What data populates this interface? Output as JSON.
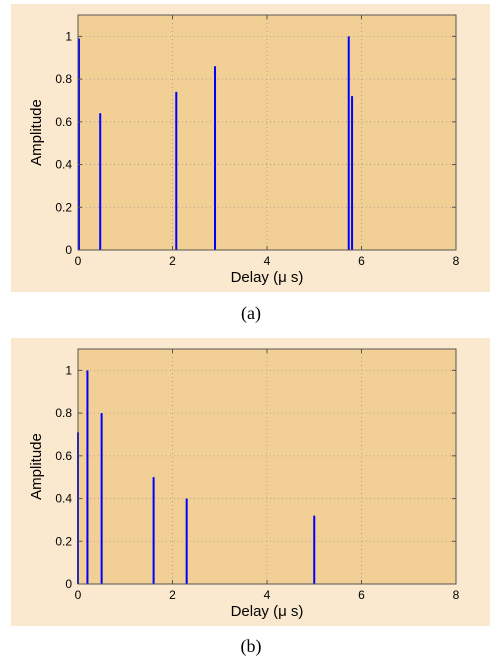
{
  "chart_data": [
    {
      "type": "stem",
      "caption": "(a)",
      "xlabel": "Delay (μ s)",
      "ylabel": "Amplitude",
      "xlim": [
        0,
        8
      ],
      "ylim": [
        0,
        1.1
      ],
      "xticks": [
        0,
        2,
        4,
        6,
        8
      ],
      "yticks": [
        0,
        0.2,
        0.4,
        0.6,
        0.8,
        1
      ],
      "grid": true,
      "x": [
        0.02,
        0.47,
        2.08,
        2.9,
        5.73,
        5.8
      ],
      "y": [
        0.99,
        0.64,
        0.74,
        0.86,
        1.0,
        0.72
      ],
      "color": "#0000ff",
      "background": "#f2cf95"
    },
    {
      "type": "stem",
      "caption": "(b)",
      "xlabel": "Delay (μ s)",
      "ylabel": "Amplitude",
      "xlim": [
        0,
        8
      ],
      "ylim": [
        0,
        1.1
      ],
      "xticks": [
        0,
        2,
        4,
        6,
        8
      ],
      "yticks": [
        0,
        0.2,
        0.4,
        0.6,
        0.8,
        1
      ],
      "grid": true,
      "x": [
        0.0,
        0.2,
        0.5,
        1.6,
        2.3,
        5.0
      ],
      "y": [
        0.71,
        1.0,
        0.8,
        0.5,
        0.4,
        0.32
      ],
      "color": "#0000ff",
      "background": "#f2cf95"
    }
  ]
}
